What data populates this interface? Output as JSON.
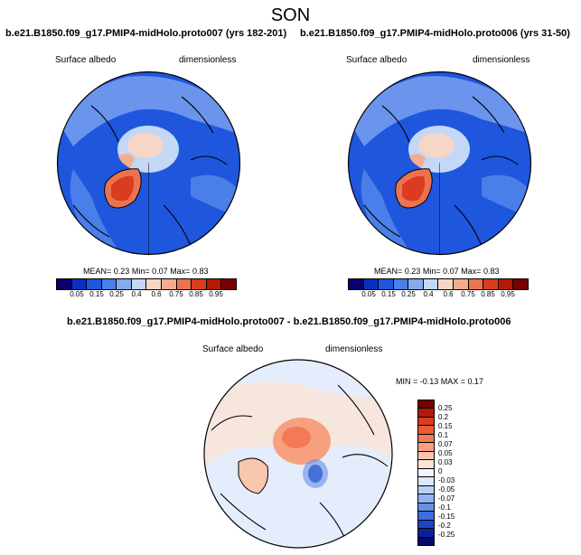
{
  "figure_title": "SON",
  "panels": [
    {
      "title": "b.e21.B1850.f09_g17.PMIP4-midHolo.proto007 (yrs 182-201)",
      "variable": "Surface albedo",
      "units": "dimensionless",
      "stats": {
        "mean_label": "MEAN=",
        "mean": "0.23",
        "min_label": "Min=",
        "min": "0.07",
        "max_label": "Max=",
        "max": "0.83"
      }
    },
    {
      "title": "b.e21.B1850.f09_g17.PMIP4-midHolo.proto006 (yrs 31-50)",
      "variable": "Surface albedo",
      "units": "dimensionless",
      "stats": {
        "mean_label": "MEAN=",
        "mean": "0.23",
        "min_label": "Min=",
        "min": "0.07",
        "max_label": "Max=",
        "max": "0.83"
      }
    },
    {
      "title": "b.e21.B1850.f09_g17.PMIP4-midHolo.proto007 - b.e21.B1850.f09_g17.PMIP4-midHolo.proto006",
      "variable": "Surface albedo",
      "units": "dimensionless",
      "stats_text": "MIN =  -0.13 MAX =   0.17"
    }
  ],
  "colorbar_abs": {
    "ticks": [
      "0.05",
      "0.15",
      "0.25",
      "0.4",
      "0.6",
      "0.75",
      "0.85",
      "0.95"
    ],
    "colors": [
      "#08006e",
      "#0a2fbf",
      "#1f56de",
      "#4a7ee8",
      "#86aaf0",
      "#c3d7f6",
      "#f6d6c6",
      "#f4ac8c",
      "#ec7350",
      "#d93c1e",
      "#b01a06",
      "#7a0000"
    ]
  },
  "colorbar_diff": {
    "ticks": [
      "0.25",
      "0.2",
      "0.15",
      "0.1",
      "0.07",
      "0.05",
      "0.03",
      "0",
      "-0.03",
      "-0.05",
      "-0.07",
      "-0.1",
      "-0.15",
      "-0.2",
      "-0.25"
    ],
    "colors": [
      "#7a0000",
      "#b01a06",
      "#d93c1e",
      "#ec5a34",
      "#f27a55",
      "#f6a080",
      "#f9c6ae",
      "#fbe3d6",
      "#f3f6fc",
      "#dce8fb",
      "#b8d0f6",
      "#90b4ef",
      "#6490e6",
      "#3d6cdc",
      "#1d44c6",
      "#0b22a0",
      "#050a6a"
    ]
  }
}
